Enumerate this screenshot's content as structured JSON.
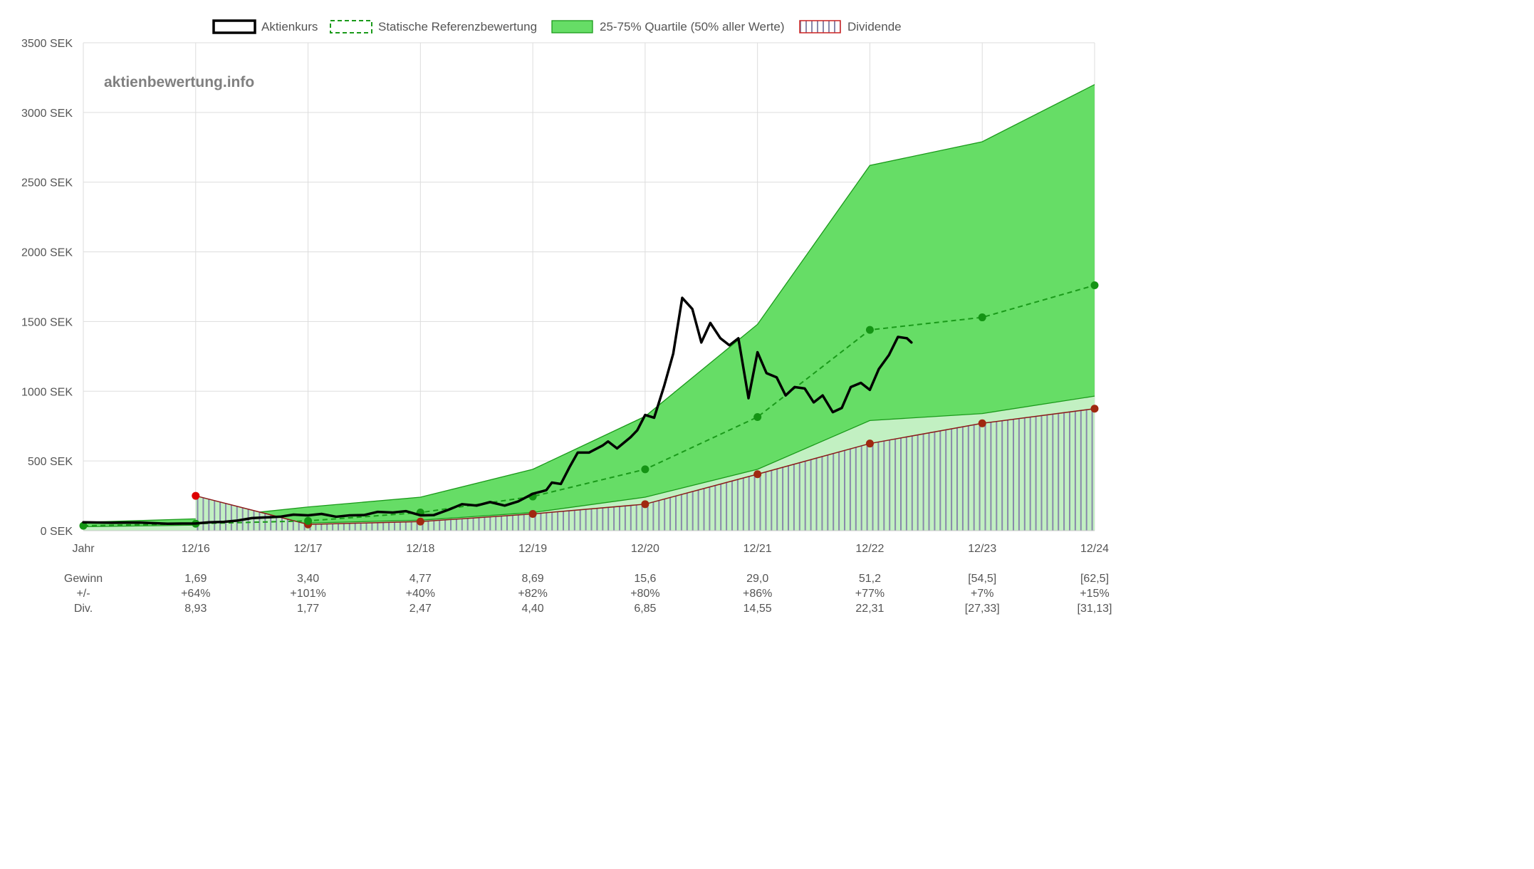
{
  "watermark": "aktienbewertung.info",
  "legend": [
    {
      "label": "Aktienkurs",
      "kind": "price"
    },
    {
      "label": "Statische Referenzbewertung",
      "kind": "reference"
    },
    {
      "label": "25-75% Quartile (50% aller Werte)",
      "kind": "quartile"
    },
    {
      "label": "Dividende",
      "kind": "dividend"
    }
  ],
  "colors": {
    "price": "#000000",
    "reference": "#1a9a1a",
    "reference_point": "#149414",
    "quartile_fill": "#66dd66",
    "quartile_line": "#1a9a1a",
    "lower_band_fill": "#c2f0c2",
    "dividend_line": "#8b1a1a",
    "dividend_point": "#a02810",
    "dividend_start_point": "#dd0000",
    "dividend_hatch": "#8888aa",
    "grid": "#dddddd",
    "text": "#555555"
  },
  "chart_data": {
    "type": "line",
    "x_unit": "years",
    "ylim": [
      0,
      3500
    ],
    "y_ticks": [
      {
        "value": 0,
        "label": "0 SEK"
      },
      {
        "value": 500,
        "label": "500 SEK"
      },
      {
        "value": 1000,
        "label": "1000 SEK"
      },
      {
        "value": 1500,
        "label": "1500 SEK"
      },
      {
        "value": 2000,
        "label": "2000 SEK"
      },
      {
        "value": 2500,
        "label": "2500 SEK"
      },
      {
        "value": 3000,
        "label": "3000 SEK"
      },
      {
        "value": 3500,
        "label": "3500 SEK"
      }
    ],
    "x_ticks": [
      {
        "x": 2015,
        "label": "Jahr"
      },
      {
        "x": 2016,
        "label": "12/16"
      },
      {
        "x": 2017,
        "label": "12/17"
      },
      {
        "x": 2018,
        "label": "12/18"
      },
      {
        "x": 2019,
        "label": "12/19"
      },
      {
        "x": 2020,
        "label": "12/20"
      },
      {
        "x": 2021,
        "label": "12/21"
      },
      {
        "x": 2022,
        "label": "12/22"
      },
      {
        "x": 2023,
        "label": "12/23"
      },
      {
        "x": 2024,
        "label": "12/24"
      }
    ],
    "grid": true,
    "legend_position": "top",
    "series": [
      {
        "name": "Aktienkurs",
        "points": [
          [
            2015.0,
            60
          ],
          [
            2015.25,
            57
          ],
          [
            2015.5,
            58
          ],
          [
            2015.75,
            50
          ],
          [
            2016.0,
            52
          ],
          [
            2016.12,
            60
          ],
          [
            2016.25,
            63
          ],
          [
            2016.37,
            72
          ],
          [
            2016.5,
            90
          ],
          [
            2016.62,
            95
          ],
          [
            2016.75,
            100
          ],
          [
            2016.87,
            115
          ],
          [
            2017.0,
            110
          ],
          [
            2017.12,
            120
          ],
          [
            2017.25,
            100
          ],
          [
            2017.37,
            110
          ],
          [
            2017.5,
            112
          ],
          [
            2017.62,
            135
          ],
          [
            2017.75,
            130
          ],
          [
            2017.87,
            140
          ],
          [
            2018.0,
            110
          ],
          [
            2018.12,
            112
          ],
          [
            2018.25,
            150
          ],
          [
            2018.37,
            190
          ],
          [
            2018.5,
            180
          ],
          [
            2018.62,
            205
          ],
          [
            2018.75,
            180
          ],
          [
            2018.87,
            210
          ],
          [
            2019.0,
            265
          ],
          [
            2019.12,
            290
          ],
          [
            2019.17,
            345
          ],
          [
            2019.25,
            335
          ],
          [
            2019.33,
            460
          ],
          [
            2019.4,
            560
          ],
          [
            2019.5,
            560
          ],
          [
            2019.62,
            610
          ],
          [
            2019.67,
            640
          ],
          [
            2019.75,
            590
          ],
          [
            2019.87,
            670
          ],
          [
            2019.93,
            720
          ],
          [
            2020.0,
            830
          ],
          [
            2020.08,
            810
          ],
          [
            2020.17,
            1040
          ],
          [
            2020.25,
            1270
          ],
          [
            2020.33,
            1670
          ],
          [
            2020.42,
            1590
          ],
          [
            2020.5,
            1350
          ],
          [
            2020.58,
            1490
          ],
          [
            2020.67,
            1380
          ],
          [
            2020.75,
            1330
          ],
          [
            2020.83,
            1380
          ],
          [
            2020.92,
            950
          ],
          [
            2021.0,
            1280
          ],
          [
            2021.08,
            1130
          ],
          [
            2021.17,
            1100
          ],
          [
            2021.25,
            970
          ],
          [
            2021.33,
            1030
          ],
          [
            2021.42,
            1020
          ],
          [
            2021.5,
            920
          ],
          [
            2021.58,
            970
          ],
          [
            2021.67,
            850
          ],
          [
            2021.75,
            880
          ],
          [
            2021.83,
            1030
          ],
          [
            2021.92,
            1060
          ],
          [
            2022.0,
            1010
          ],
          [
            2022.08,
            1160
          ],
          [
            2022.17,
            1260
          ],
          [
            2022.25,
            1390
          ],
          [
            2022.33,
            1380
          ],
          [
            2022.37,
            1350
          ]
        ]
      },
      {
        "name": "Statische Referenzbewertung",
        "points": [
          [
            2015,
            35
          ],
          [
            2016,
            50
          ],
          [
            2017,
            70
          ],
          [
            2018,
            130
          ],
          [
            2019,
            245
          ],
          [
            2020,
            440
          ],
          [
            2021,
            815
          ],
          [
            2022,
            1440
          ],
          [
            2023,
            1530
          ],
          [
            2024,
            1760
          ]
        ]
      },
      {
        "name": "25-75% Quartile (50% aller Werte)",
        "upper": [
          [
            2015,
            60
          ],
          [
            2016,
            85
          ],
          [
            2017,
            170
          ],
          [
            2018,
            240
          ],
          [
            2019,
            440
          ],
          [
            2020,
            820
          ],
          [
            2021,
            1480
          ],
          [
            2022,
            2620
          ],
          [
            2023,
            2790
          ],
          [
            2024,
            3200
          ]
        ],
        "lower": [
          [
            2015,
            28
          ],
          [
            2016,
            40
          ],
          [
            2017,
            55
          ],
          [
            2018,
            75
          ],
          [
            2019,
            130
          ],
          [
            2020,
            240
          ],
          [
            2021,
            440
          ],
          [
            2022,
            790
          ],
          [
            2023,
            840
          ],
          [
            2024,
            965
          ]
        ]
      },
      {
        "name": "Dividende",
        "points": [
          [
            2016,
            250
          ],
          [
            2017,
            45
          ],
          [
            2018,
            65
          ],
          [
            2019,
            120
          ],
          [
            2020,
            190
          ],
          [
            2021,
            405
          ],
          [
            2022,
            625
          ],
          [
            2023,
            770
          ],
          [
            2024,
            875
          ]
        ]
      }
    ]
  },
  "table": {
    "row_labels": [
      "Gewinn",
      "+/-",
      "Div."
    ],
    "columns": [
      {
        "x": 2016,
        "gewinn": "1,69",
        "change": "+64%",
        "div": "8,93"
      },
      {
        "x": 2017,
        "gewinn": "3,40",
        "change": "+101%",
        "div": "1,77"
      },
      {
        "x": 2018,
        "gewinn": "4,77",
        "change": "+40%",
        "div": "2,47"
      },
      {
        "x": 2019,
        "gewinn": "8,69",
        "change": "+82%",
        "div": "4,40"
      },
      {
        "x": 2020,
        "gewinn": "15,6",
        "change": "+80%",
        "div": "6,85"
      },
      {
        "x": 2021,
        "gewinn": "29,0",
        "change": "+86%",
        "div": "14,55"
      },
      {
        "x": 2022,
        "gewinn": "51,2",
        "change": "+77%",
        "div": "22,31"
      },
      {
        "x": 2023,
        "gewinn": "[54,5]",
        "change": "+7%",
        "div": "[27,33]"
      },
      {
        "x": 2024,
        "gewinn": "[62,5]",
        "change": "+15%",
        "div": "[31,13]"
      }
    ]
  }
}
